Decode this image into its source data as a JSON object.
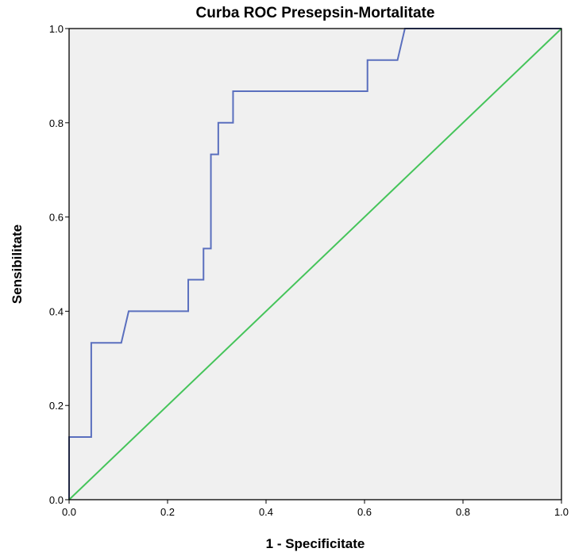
{
  "chart_data": {
    "type": "line",
    "title": "Curba ROC Presepsin-Mortalitate",
    "xlabel": "1 - Specificitate",
    "ylabel": "Sensibilitate",
    "xlim": [
      0.0,
      1.0
    ],
    "ylim": [
      0.0,
      1.0
    ],
    "x_ticks": [
      "0.0",
      "0.2",
      "0.4",
      "0.6",
      "0.8",
      "1.0"
    ],
    "y_ticks": [
      "0.0",
      "0.2",
      "0.4",
      "0.6",
      "0.8",
      "1.0"
    ],
    "grid": false,
    "plot_background": "#f0f0f0",
    "series": [
      {
        "color": "#5a6fbe",
        "x": [
          0.0,
          0.0,
          0.045,
          0.045,
          0.106,
          0.121,
          0.242,
          0.242,
          0.273,
          0.273,
          0.288,
          0.288,
          0.303,
          0.303,
          0.333,
          0.333,
          0.606,
          0.606,
          0.667,
          0.682,
          1.0
        ],
        "y": [
          0.0,
          0.133,
          0.133,
          0.333,
          0.333,
          0.4,
          0.4,
          0.467,
          0.467,
          0.533,
          0.533,
          0.733,
          0.733,
          0.8,
          0.8,
          0.867,
          0.867,
          0.933,
          0.933,
          1.0,
          1.0
        ]
      },
      {
        "color": "#45c45a",
        "x": [
          0.0,
          1.0
        ],
        "y": [
          0.0,
          1.0
        ]
      }
    ]
  }
}
